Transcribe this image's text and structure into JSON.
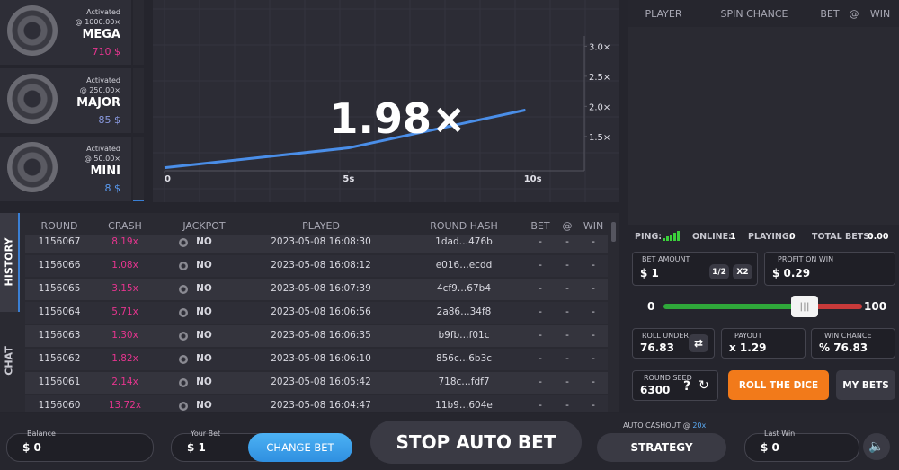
{
  "jackpots": [
    {
      "status": "Activated",
      "threshold": "@ 1000.00×",
      "name": "MEGA",
      "amount": "710 $"
    },
    {
      "status": "Activated",
      "threshold": "@ 250.00×",
      "name": "MAJOR",
      "amount": "85 $"
    },
    {
      "status": "Activated",
      "threshold": "@ 50.00×",
      "name": "MINI",
      "amount": "8 $"
    }
  ],
  "graph": {
    "multiplier": "1.98×",
    "xlim": [
      0,
      11.4
    ],
    "ylim": [
      0.93,
      3.17
    ],
    "xticks": [
      {
        "value": 0,
        "label": "0"
      },
      {
        "value": 5,
        "label": "5s"
      },
      {
        "value": 10,
        "label": "10s"
      }
    ],
    "yticks": [
      {
        "value": 1.5,
        "label": "1.5×"
      },
      {
        "value": 2,
        "label": "2.0×"
      },
      {
        "value": 2.5,
        "label": "2.5×"
      },
      {
        "value": 3,
        "label": "3.0×"
      }
    ],
    "x": [
      0,
      5,
      9.8
    ],
    "values": [
      0.98,
      1.31,
      1.94
    ]
  },
  "players": {
    "columns": [
      "PLAYER",
      "SPIN CHANCE",
      "BET",
      "@",
      "WIN"
    ]
  },
  "stats": {
    "ping": "PING:",
    "online_label": "ONLINE:",
    "online": "1",
    "playing_label": "PLAYING:",
    "playing": "0",
    "total_label": "TOTAL BETS:",
    "total": "0.00"
  },
  "bet_form": {
    "bet_amount_label": "BET AMOUNT",
    "bet_amount": "$ 1",
    "half": "1/2",
    "double": "X2",
    "profit_label": "PROFIT ON WIN",
    "profit": "$ 0.29",
    "slider_min": "0",
    "slider_max": "100",
    "roll_under_label": "ROLL UNDER",
    "roll_under": "76.83",
    "payout_label": "PAYOUT",
    "payout": "x 1.29",
    "win_chance_label": "WIN CHANCE",
    "win_chance": "% 76.83",
    "seed_label": "ROUND SEED",
    "seed": "6300",
    "help": "?",
    "roll": "ROLL THE DICE",
    "my_bets": "MY BETS"
  },
  "history": {
    "tabs": [
      "HISTORY",
      "CHAT"
    ],
    "columns": [
      "ROUND",
      "CRASH",
      "JACKPOT",
      "PLAYED",
      "ROUND HASH",
      "BET",
      "@",
      "WIN"
    ],
    "rows": [
      [
        "1156067",
        "8.19x",
        "NO",
        "2023-05-08 16:08:30",
        "1dad…476b",
        "-",
        "-",
        "-"
      ],
      [
        "1156066",
        "1.08x",
        "NO",
        "2023-05-08 16:08:12",
        "e016…ecdd",
        "-",
        "-",
        "-"
      ],
      [
        "1156065",
        "3.15x",
        "NO",
        "2023-05-08 16:07:39",
        "4cf9…67b4",
        "-",
        "-",
        "-"
      ],
      [
        "1156064",
        "5.71x",
        "NO",
        "2023-05-08 16:06:56",
        "2a86…34f8",
        "-",
        "-",
        "-"
      ],
      [
        "1156063",
        "1.30x",
        "NO",
        "2023-05-08 16:06:35",
        "b9fb…f01c",
        "-",
        "-",
        "-"
      ],
      [
        "1156062",
        "1.82x",
        "NO",
        "2023-05-08 16:06:10",
        "856c…6b3c",
        "-",
        "-",
        "-"
      ],
      [
        "1156061",
        "2.14x",
        "NO",
        "2023-05-08 16:05:42",
        "718c…fdf7",
        "-",
        "-",
        "-"
      ],
      [
        "1156060",
        "13.72x",
        "NO",
        "2023-05-08 16:04:47",
        "11b9…604e",
        "-",
        "-",
        "-"
      ]
    ]
  },
  "bottom": {
    "balance_label": "Balance",
    "balance": "$ 0",
    "your_bet_label": "Your Bet",
    "your_bet": "$ 1",
    "change_bet": "CHANGE BET",
    "stop": "STOP AUTO BET",
    "auto_cashout_label": "AUTO CASHOUT @",
    "auto_cashout": "20x",
    "strategy": "STRATEGY",
    "last_win_label": "Last Win",
    "last_win": "$ 0"
  }
}
